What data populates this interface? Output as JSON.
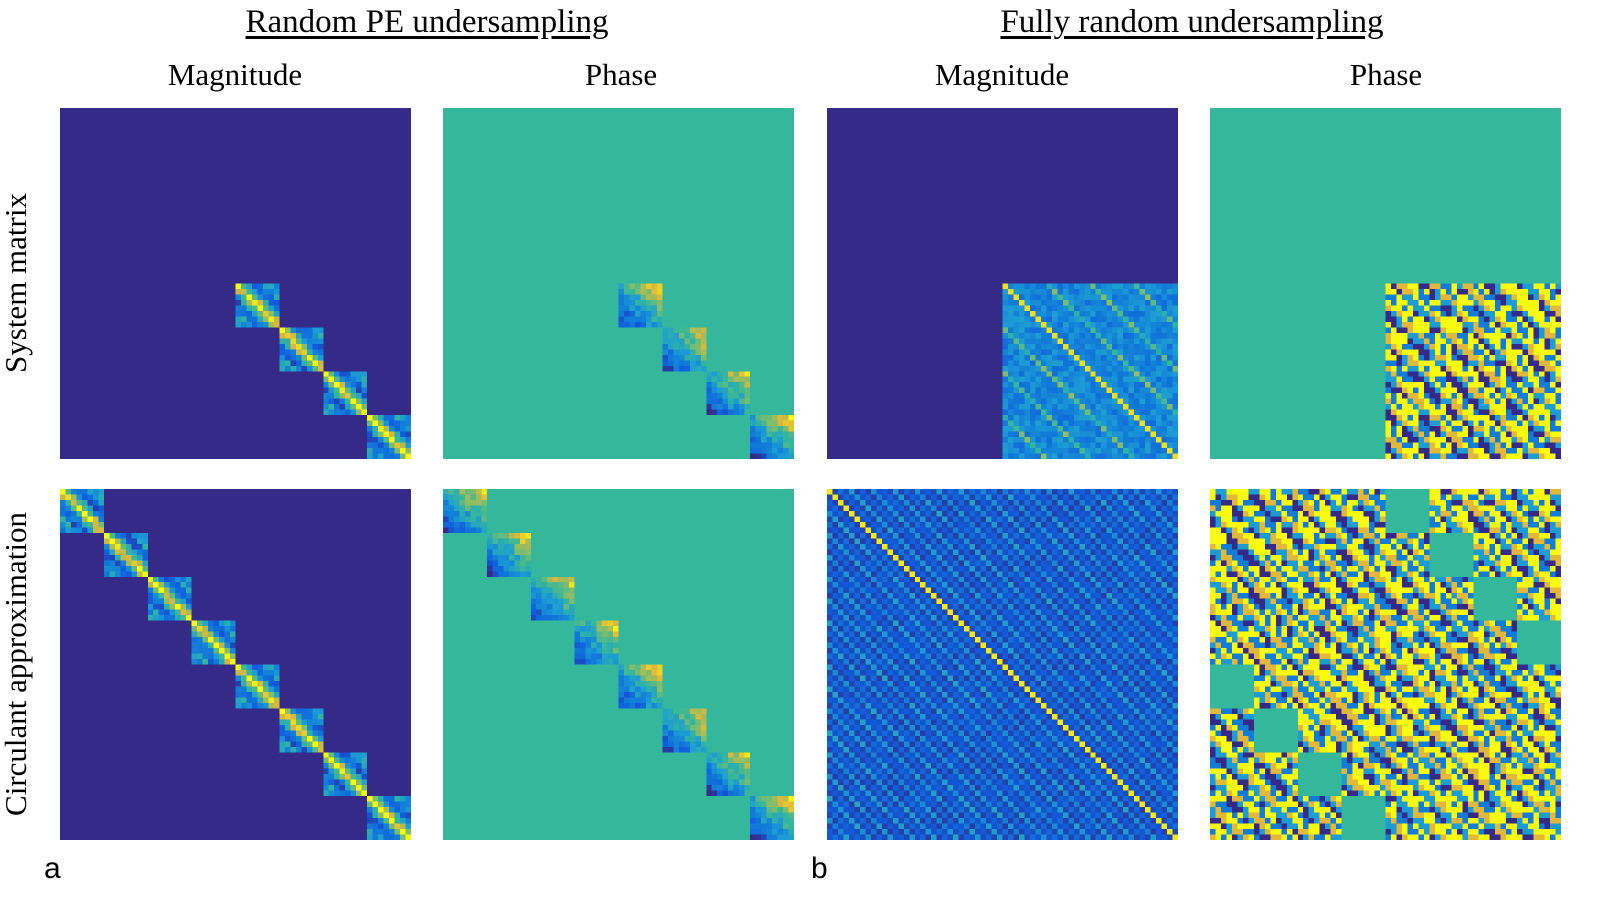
{
  "groups": {
    "random_pe": "Random PE undersampling",
    "fully_random": "Fully random undersampling"
  },
  "columns": {
    "magnitude": "Magnitude",
    "phase": "Phase"
  },
  "rows": {
    "system_matrix": "System matrix",
    "circulant": "Circulant approximation"
  },
  "panel_letters": {
    "a": "a",
    "b": "b"
  },
  "colors": {
    "dark_blue": "#352a87",
    "teal": "#35b79b",
    "yellow": "#f9fb0e",
    "blue": "#0f5cdd",
    "light_blue": "#1c9cd4",
    "orange_yellow": "#e2b73a"
  }
}
